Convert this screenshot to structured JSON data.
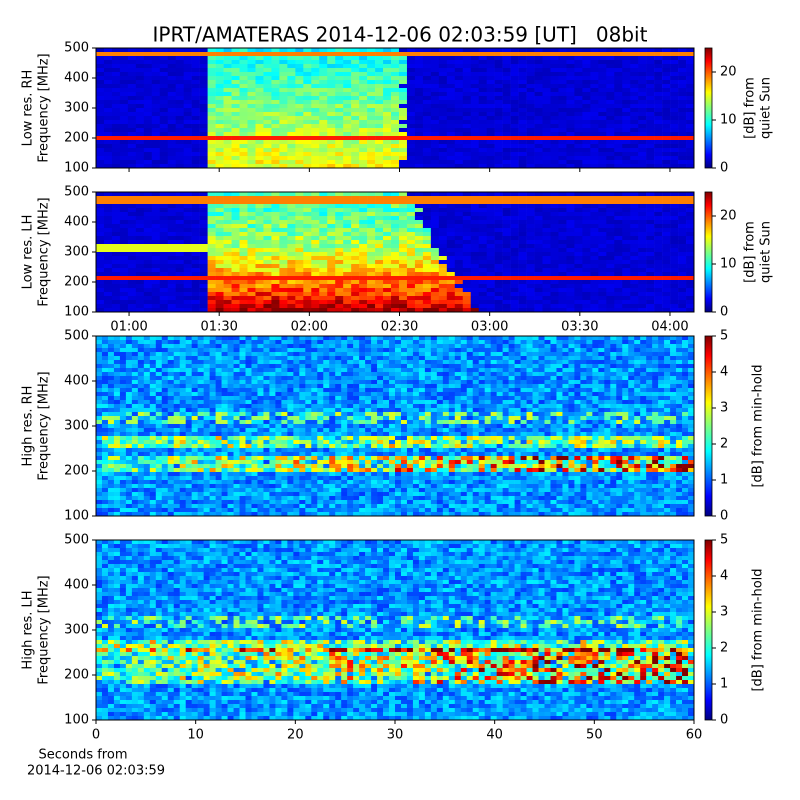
{
  "chart_data": [
    {
      "type": "heatmap",
      "title": "IPRT/AMATERAS 2014-12-06 02:03:59 [UT]   08bit",
      "ylabel": [
        "Low res. RH",
        "Frequency [MHz]"
      ],
      "ylim": [
        100,
        500
      ],
      "yticks": [
        100,
        200,
        300,
        400,
        500
      ],
      "xlim": [
        49,
        248
      ],
      "clim": [
        0,
        25
      ],
      "cticks": [
        0,
        10,
        20
      ],
      "clabel": [
        "[dB] from",
        "quiet Sun"
      ],
      "colormap": "jet"
    },
    {
      "type": "heatmap",
      "ylabel": [
        "Low res. LH",
        "Frequency [MHz]"
      ],
      "ylim": [
        100,
        500
      ],
      "yticks": [
        100,
        200,
        300,
        400,
        500
      ],
      "xlim": [
        49,
        248
      ],
      "xticks": [
        {
          "value": 60,
          "label": "01:00"
        },
        {
          "value": 90,
          "label": "01:30"
        },
        {
          "value": 120,
          "label": "02:00"
        },
        {
          "value": 150,
          "label": "02:30"
        },
        {
          "value": 180,
          "label": "03:00"
        },
        {
          "value": 210,
          "label": "03:30"
        },
        {
          "value": 240,
          "label": "04:00"
        }
      ],
      "clim": [
        0,
        25
      ],
      "cticks": [
        0,
        10,
        20
      ],
      "clabel": [
        "[dB] from",
        "quiet Sun"
      ],
      "colormap": "jet"
    },
    {
      "type": "heatmap",
      "ylabel": [
        "High res. RH",
        "Frequency [MHz]"
      ],
      "ylim": [
        100,
        500
      ],
      "yticks": [
        100,
        200,
        300,
        400,
        500
      ],
      "xlim": [
        0,
        60
      ],
      "clim": [
        0,
        5
      ],
      "cticks": [
        0,
        1,
        2,
        3,
        4,
        5
      ],
      "clabel": [
        "[dB] from min-hold"
      ],
      "colormap": "jet"
    },
    {
      "type": "heatmap",
      "ylabel": [
        "High res. LH",
        "Frequency [MHz]"
      ],
      "ylim": [
        100,
        500
      ],
      "yticks": [
        100,
        200,
        300,
        400,
        500
      ],
      "xlim": [
        0,
        60
      ],
      "xticks": [
        0,
        10,
        20,
        30,
        40,
        50,
        60
      ],
      "xlabel": [
        "Seconds from",
        "2014-12-06 02:03:59"
      ],
      "clim": [
        0,
        5
      ],
      "cticks": [
        0,
        1,
        2,
        3,
        4,
        5
      ],
      "clabel": [
        "[dB] from min-hold"
      ],
      "colormap": "jet"
    }
  ]
}
